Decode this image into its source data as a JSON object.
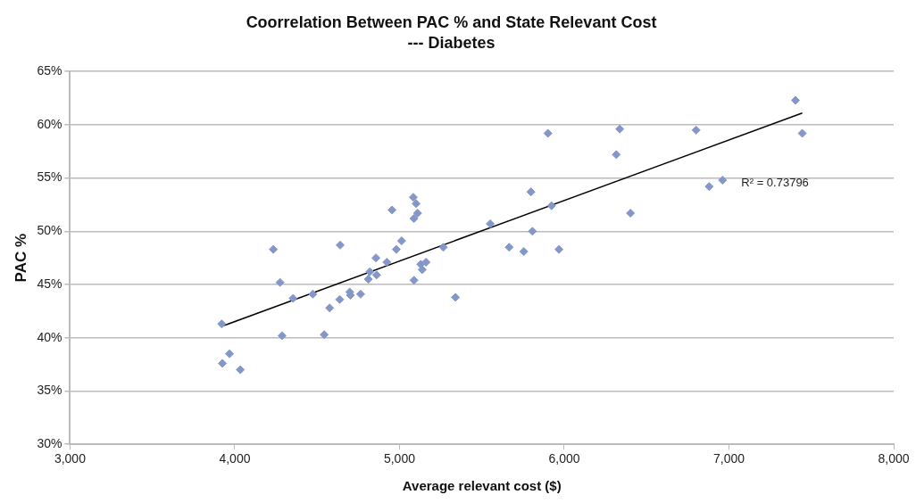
{
  "chart_data": {
    "type": "scatter",
    "title": "Coorrelation Between PAC % and State Relevant Cost",
    "subtitle": "--- Diabetes",
    "xlabel": "Average relevant cost ($)",
    "ylabel": "PAC %",
    "xlim": [
      3000,
      8000
    ],
    "xticks": [
      {
        "value": 3000,
        "label": "3,000"
      },
      {
        "value": 4000,
        "label": "4,000"
      },
      {
        "value": 5000,
        "label": "5,000"
      },
      {
        "value": 6000,
        "label": "6,000"
      },
      {
        "value": 7000,
        "label": "7,000"
      },
      {
        "value": 8000,
        "label": "8,000"
      }
    ],
    "ylim": [
      30,
      65
    ],
    "yticks": [
      {
        "value": 30,
        "label": "30%"
      },
      {
        "value": 35,
        "label": "35%"
      },
      {
        "value": 40,
        "label": "40%"
      },
      {
        "value": 45,
        "label": "45%"
      },
      {
        "value": 50,
        "label": "50%"
      },
      {
        "value": 55,
        "label": "55%"
      },
      {
        "value": 60,
        "label": "60%"
      },
      {
        "value": 65,
        "label": "65%"
      }
    ],
    "grid": "y",
    "legend": false,
    "series": [
      {
        "type": "scatter",
        "marker": "diamond",
        "color": "#8497c8",
        "x": [
          5084,
          5101,
          4955,
          5110,
          5088,
          4640,
          4234,
          5013,
          4981,
          4857,
          4923,
          5266,
          5129,
          5161,
          5138,
          4820,
          4811,
          4861,
          4275,
          5088,
          4354,
          4474,
          4637,
          4698,
          4702,
          4764,
          4576,
          5340,
          3921,
          4287,
          4543,
          3968,
          3925,
          4034,
          7404,
          7445,
          5901,
          6337,
          6801,
          6316,
          6880,
          6961,
          5798,
          5923,
          6402,
          5551,
          5807,
          5666,
          5755,
          5968
        ],
        "values": [
          53.2,
          52.6,
          52.0,
          51.7,
          51.2,
          48.7,
          48.3,
          49.1,
          48.3,
          47.5,
          47.1,
          48.5,
          46.9,
          47.1,
          46.4,
          46.2,
          45.5,
          45.9,
          45.2,
          45.4,
          43.7,
          44.1,
          43.6,
          44.3,
          44.0,
          44.1,
          42.8,
          43.8,
          41.3,
          40.2,
          40.3,
          38.5,
          37.6,
          37.0,
          62.3,
          59.2,
          59.2,
          59.6,
          59.5,
          57.2,
          54.2,
          54.8,
          53.7,
          52.4,
          51.7,
          50.7,
          50.0,
          48.5,
          48.1,
          48.3
        ]
      },
      {
        "type": "line",
        "marker": "none",
        "color": "#000000",
        "x": [
          3925,
          7445
        ],
        "values": [
          41.1,
          61.1
        ]
      }
    ],
    "annotations": [
      "R² = 0.73796"
    ]
  }
}
